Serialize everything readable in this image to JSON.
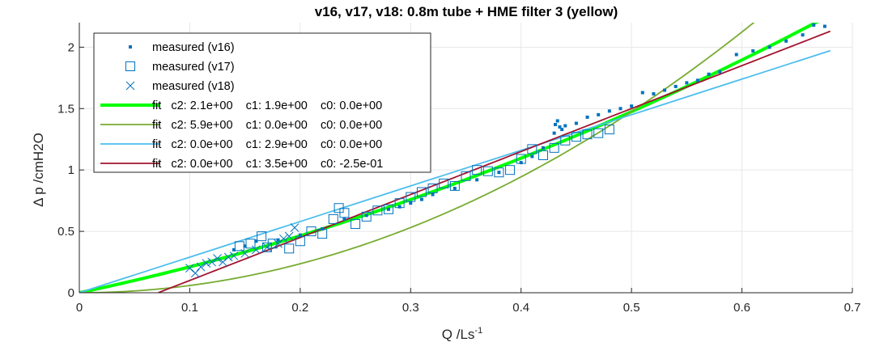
{
  "chart_data": {
    "type": "scatter",
    "title": "v16, v17, v18: 0.8m tube + HME filter 3 (yellow)",
    "xlabel": "Q /Ls",
    "xlabel_sup": "-1",
    "ylabel": "Δ p /cmH2O",
    "xlim": [
      0,
      0.7
    ],
    "ylim": [
      0,
      2.2
    ],
    "xticks": [
      0,
      0.1,
      0.2,
      0.3,
      0.4,
      0.5,
      0.6,
      0.7
    ],
    "xtick_labels": [
      "0",
      "0.1",
      "0.2",
      "0.3",
      "0.4",
      "0.5",
      "0.6",
      "0.7"
    ],
    "yticks": [
      0,
      0.5,
      1,
      1.5,
      2
    ],
    "ytick_labels": [
      "0",
      "0.5",
      "1",
      "1.5",
      "2"
    ],
    "grid": true,
    "legend_position": "top-left",
    "series": [
      {
        "name": "measured (v16)",
        "kind": "points",
        "marker": "dot",
        "color": "#0072bd",
        "x": [
          0.14,
          0.15,
          0.16,
          0.18,
          0.2,
          0.22,
          0.24,
          0.26,
          0.28,
          0.29,
          0.3,
          0.31,
          0.32,
          0.34,
          0.36,
          0.38,
          0.4,
          0.41,
          0.42,
          0.43,
          0.431,
          0.433,
          0.435,
          0.437,
          0.44,
          0.45,
          0.46,
          0.47,
          0.48,
          0.49,
          0.5,
          0.51,
          0.52,
          0.53,
          0.54,
          0.55,
          0.56,
          0.57,
          0.58,
          0.595,
          0.61,
          0.625,
          0.64,
          0.655,
          0.665,
          0.67,
          0.675
        ],
        "y": [
          0.35,
          0.38,
          0.42,
          0.43,
          0.47,
          0.52,
          0.6,
          0.63,
          0.68,
          0.7,
          0.73,
          0.76,
          0.8,
          0.85,
          0.92,
          0.98,
          1.06,
          1.11,
          1.18,
          1.3,
          1.37,
          1.4,
          1.35,
          1.33,
          1.36,
          1.38,
          1.43,
          1.45,
          1.48,
          1.5,
          1.52,
          1.63,
          1.62,
          1.65,
          1.68,
          1.71,
          1.73,
          1.78,
          1.8,
          1.94,
          1.97,
          2.0,
          2.05,
          2.1,
          2.18,
          2.22,
          2.17
        ]
      },
      {
        "name": "measured (v17)",
        "kind": "points",
        "marker": "square",
        "color": "#0072bd",
        "x": [
          0.145,
          0.155,
          0.165,
          0.17,
          0.175,
          0.19,
          0.2,
          0.21,
          0.22,
          0.23,
          0.235,
          0.24,
          0.25,
          0.26,
          0.27,
          0.28,
          0.29,
          0.3,
          0.31,
          0.32,
          0.33,
          0.34,
          0.35,
          0.36,
          0.37,
          0.38,
          0.39,
          0.4,
          0.41,
          0.42,
          0.43,
          0.44,
          0.45,
          0.46,
          0.47,
          0.48
        ],
        "y": [
          0.38,
          0.4,
          0.46,
          0.37,
          0.4,
          0.36,
          0.42,
          0.5,
          0.48,
          0.6,
          0.69,
          0.65,
          0.56,
          0.62,
          0.67,
          0.68,
          0.73,
          0.78,
          0.82,
          0.85,
          0.89,
          0.87,
          0.95,
          1.0,
          0.99,
          0.98,
          1.0,
          1.09,
          1.17,
          1.12,
          1.18,
          1.24,
          1.27,
          1.29,
          1.3,
          1.33
        ]
      },
      {
        "name": "measured (v18)",
        "kind": "points",
        "marker": "cross",
        "color": "#0072bd",
        "x": [
          0.1,
          0.105,
          0.11,
          0.115,
          0.12,
          0.125,
          0.13,
          0.135,
          0.14,
          0.15,
          0.16,
          0.17,
          0.18,
          0.185,
          0.19,
          0.195
        ],
        "y": [
          0.2,
          0.16,
          0.21,
          0.24,
          0.25,
          0.28,
          0.25,
          0.29,
          0.3,
          0.32,
          0.35,
          0.37,
          0.4,
          0.44,
          0.46,
          0.53
        ]
      },
      {
        "name": "fit   c2: 2.1e+00    c1: 1.9e+00    c0: 0.0e+00",
        "kind": "curve",
        "c2": 2.1,
        "c1": 1.9,
        "c0": 0.0,
        "x_range": [
          0,
          0.67
        ],
        "color": "#00ff00",
        "width": 4
      },
      {
        "name": "fit   c2: 5.9e+00    c1: 0.0e+00    c0: 0.0e+00",
        "kind": "curve",
        "c2": 5.9,
        "c1": 0.0,
        "c0": 0.0,
        "x_range": [
          0,
          0.62
        ],
        "color": "#77ac30",
        "width": 1.8
      },
      {
        "name": "fit   c2: 0.0e+00    c1: 2.9e+00    c0: 0.0e+00",
        "kind": "curve",
        "c2": 0.0,
        "c1": 2.9,
        "c0": 0.0,
        "x_range": [
          0,
          0.68
        ],
        "color": "#4dbeee",
        "width": 1.8
      },
      {
        "name": "fit   c2: 0.0e+00    c1: 3.5e+00    c0: -2.5e-01",
        "kind": "curve",
        "c2": 0.0,
        "c1": 3.5,
        "c0": -0.25,
        "x_range": [
          0.0715,
          0.68
        ],
        "color": "#a2142f",
        "width": 1.8
      }
    ]
  }
}
